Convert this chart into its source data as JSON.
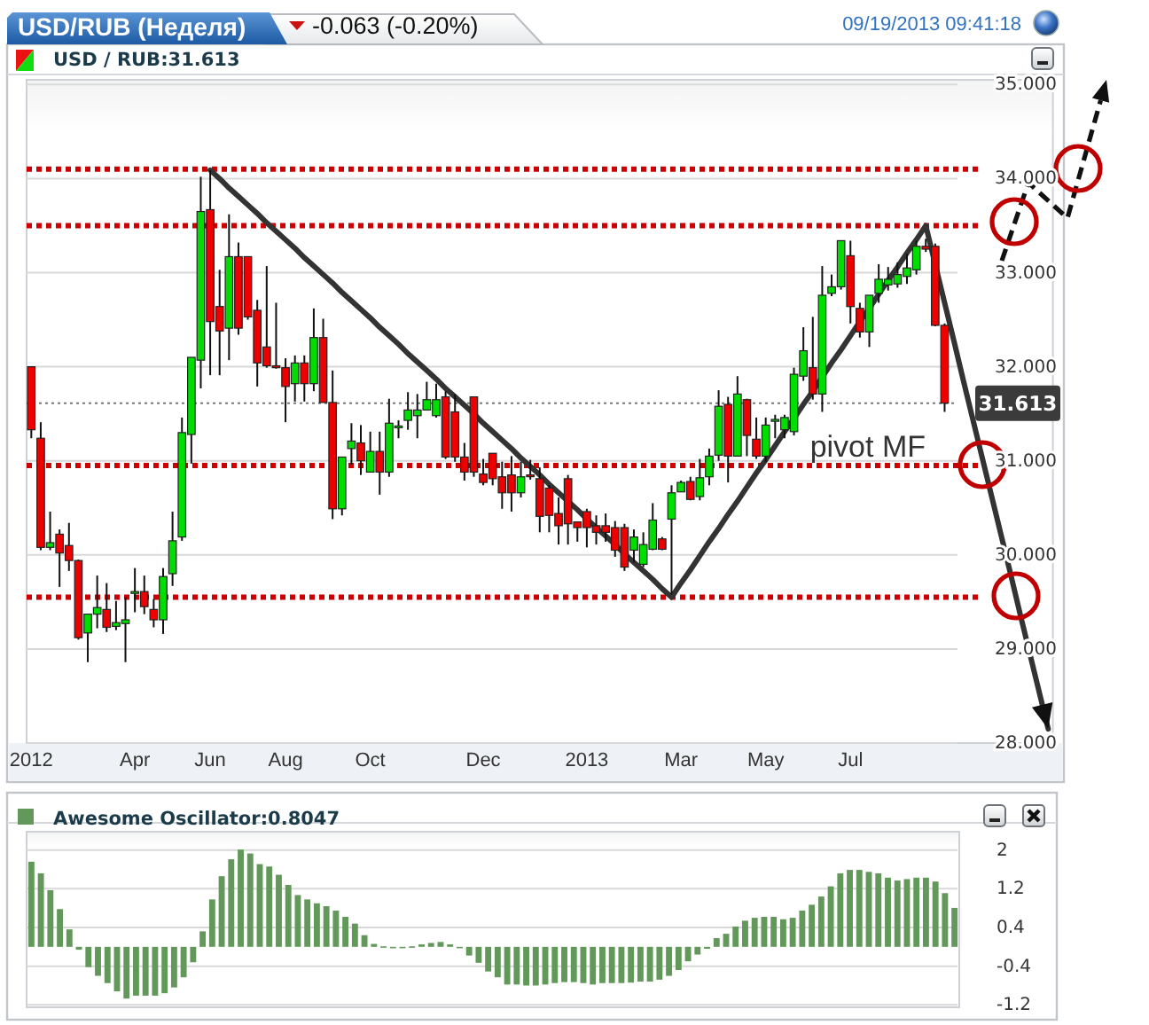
{
  "chart_data": [
    {
      "type": "candlestick",
      "title": "USD/RUB (Неделя)",
      "subtitle": "USD / RUB:31.613",
      "annotations": [
        "-0.063 (-0.20%)",
        "09/19/2013 09:41:18"
      ],
      "categories": [
        "2012",
        null,
        null,
        null,
        null,
        null,
        null,
        null,
        null,
        null,
        null,
        "Apr",
        null,
        null,
        null,
        null,
        null,
        null,
        null,
        "Jun",
        null,
        null,
        null,
        null,
        null,
        null,
        null,
        "Aug",
        null,
        null,
        null,
        null,
        null,
        null,
        null,
        null,
        "Oct",
        null,
        null,
        null,
        null,
        null,
        null,
        null,
        null,
        null,
        null,
        null,
        "Dec",
        null,
        null,
        null,
        null,
        null,
        null,
        null,
        null,
        null,
        null,
        "2013",
        null,
        null,
        null,
        null,
        null,
        null,
        null,
        null,
        null,
        "Mar",
        null,
        null,
        null,
        null,
        null,
        null,
        null,
        null,
        "May",
        null,
        null,
        null,
        null,
        null,
        null,
        null,
        null,
        "Jul",
        null,
        null,
        null,
        null,
        null,
        null,
        null,
        null,
        null,
        null,
        null,
        null,
        null,
        null,
        null,
        null,
        null,
        null,
        null,
        null,
        null
      ],
      "ohlc": [
        [
          32.0,
          32.0,
          31.24,
          31.33
        ],
        [
          31.24,
          31.41,
          30.05,
          30.08
        ],
        [
          30.08,
          30.46,
          30.05,
          30.13
        ],
        [
          30.22,
          30.27,
          29.66,
          30.02
        ],
        [
          30.1,
          30.34,
          29.83,
          29.94
        ],
        [
          29.94,
          29.95,
          29.1,
          29.12
        ],
        [
          29.17,
          29.37,
          28.86,
          29.37
        ],
        [
          29.37,
          29.78,
          29.22,
          29.44
        ],
        [
          29.42,
          29.7,
          29.18,
          29.23
        ],
        [
          29.24,
          29.51,
          29.2,
          29.28
        ],
        [
          29.27,
          29.55,
          28.86,
          29.31
        ],
        [
          29.6,
          29.86,
          29.39,
          29.61
        ],
        [
          29.61,
          29.78,
          29.37,
          29.45
        ],
        [
          29.42,
          29.53,
          29.23,
          29.31
        ],
        [
          29.31,
          29.86,
          29.16,
          29.77
        ],
        [
          29.8,
          30.46,
          29.67,
          30.15
        ],
        [
          30.19,
          31.46,
          30.15,
          31.3
        ],
        [
          31.28,
          32.1,
          30.97,
          32.1
        ],
        [
          32.07,
          34.02,
          31.77,
          33.65
        ],
        [
          33.67,
          34.09,
          31.91,
          32.48
        ],
        [
          32.64,
          33.03,
          31.91,
          32.38
        ],
        [
          32.41,
          33.62,
          32.07,
          33.17
        ],
        [
          33.17,
          33.32,
          32.34,
          32.41
        ],
        [
          33.17,
          33.17,
          32.5,
          32.53
        ],
        [
          32.6,
          32.71,
          31.79,
          32.04
        ],
        [
          32.21,
          33.07,
          31.99,
          32.01
        ],
        [
          32.01,
          32.68,
          31.98,
          31.99
        ],
        [
          31.99,
          32.09,
          31.41,
          31.79
        ],
        [
          31.82,
          32.12,
          31.63,
          32.04
        ],
        [
          32.04,
          32.12,
          31.63,
          31.82
        ],
        [
          31.82,
          32.62,
          31.74,
          32.31
        ],
        [
          32.31,
          32.51,
          31.62,
          31.62
        ],
        [
          31.62,
          31.96,
          30.38,
          30.49
        ],
        [
          30.49,
          31.04,
          30.42,
          31.04
        ],
        [
          31.13,
          31.4,
          30.96,
          31.21
        ],
        [
          31.19,
          31.38,
          30.85,
          31.0
        ],
        [
          30.88,
          31.31,
          30.88,
          31.1
        ],
        [
          31.1,
          31.31,
          30.64,
          30.88
        ],
        [
          30.88,
          31.66,
          30.83,
          31.4
        ],
        [
          31.36,
          31.43,
          31.24,
          31.37
        ],
        [
          31.43,
          31.73,
          31.33,
          31.54
        ],
        [
          31.48,
          31.71,
          31.24,
          31.54
        ],
        [
          31.54,
          31.84,
          31.54,
          31.65
        ],
        [
          31.48,
          31.82,
          31.46,
          31.65
        ],
        [
          31.68,
          31.74,
          31.02,
          31.04
        ],
        [
          31.52,
          31.71,
          30.99,
          31.04
        ],
        [
          31.04,
          31.19,
          30.79,
          30.88
        ],
        [
          31.68,
          31.68,
          30.83,
          30.88
        ],
        [
          30.86,
          31.02,
          30.74,
          30.77
        ],
        [
          31.08,
          31.08,
          30.74,
          30.81
        ],
        [
          30.83,
          30.99,
          30.49,
          30.66
        ],
        [
          30.85,
          31.05,
          30.46,
          30.66
        ],
        [
          30.66,
          30.99,
          30.61,
          30.83
        ],
        [
          30.85,
          31.01,
          30.8,
          30.84
        ],
        [
          30.81,
          30.93,
          30.24,
          30.41
        ],
        [
          30.71,
          30.74,
          30.24,
          30.42
        ],
        [
          30.44,
          30.61,
          30.11,
          30.31
        ],
        [
          30.81,
          30.85,
          30.11,
          30.33
        ],
        [
          30.35,
          30.35,
          30.14,
          30.29
        ],
        [
          30.46,
          30.49,
          30.08,
          30.29
        ],
        [
          30.31,
          30.42,
          30.11,
          30.24
        ],
        [
          30.31,
          30.44,
          30.14,
          30.24
        ],
        [
          30.29,
          30.36,
          29.98,
          30.05
        ],
        [
          30.29,
          30.33,
          29.83,
          29.87
        ],
        [
          30.05,
          30.27,
          29.92,
          30.19
        ],
        [
          29.9,
          30.24,
          29.87,
          30.11
        ],
        [
          30.06,
          30.55,
          30.05,
          30.37
        ],
        [
          30.17,
          30.19,
          30.05,
          30.06
        ],
        [
          30.38,
          30.74,
          29.58,
          30.66
        ],
        [
          30.67,
          30.79,
          30.67,
          30.77
        ],
        [
          30.78,
          30.83,
          30.58,
          30.59
        ],
        [
          30.62,
          31.02,
          30.58,
          30.82
        ],
        [
          30.83,
          31.13,
          30.74,
          31.05
        ],
        [
          31.06,
          31.75,
          31.0,
          31.58
        ],
        [
          31.6,
          31.68,
          30.77,
          31.05
        ],
        [
          31.05,
          31.9,
          31.05,
          31.71
        ],
        [
          31.65,
          31.66,
          31.05,
          31.27
        ],
        [
          31.23,
          31.46,
          31.02,
          31.05
        ],
        [
          31.05,
          31.46,
          30.99,
          31.38
        ],
        [
          31.42,
          31.49,
          31.24,
          31.44
        ],
        [
          31.33,
          31.49,
          31.24,
          31.46
        ],
        [
          31.31,
          31.99,
          31.27,
          31.92
        ],
        [
          31.9,
          32.42,
          31.85,
          32.17
        ],
        [
          31.99,
          32.53,
          31.65,
          31.71
        ],
        [
          31.71,
          33.07,
          31.52,
          32.76
        ],
        [
          32.78,
          32.98,
          32.75,
          32.85
        ],
        [
          32.85,
          33.34,
          32.82,
          33.34
        ],
        [
          33.18,
          33.34,
          32.46,
          32.64
        ],
        [
          32.62,
          32.68,
          32.31,
          32.37
        ],
        [
          32.37,
          32.76,
          32.21,
          32.76
        ],
        [
          32.78,
          33.09,
          32.68,
          32.93
        ],
        [
          32.87,
          33.06,
          32.81,
          32.93
        ],
        [
          32.88,
          33.11,
          32.84,
          32.98
        ],
        [
          32.96,
          33.2,
          32.88,
          33.05
        ],
        [
          33.03,
          33.34,
          32.98,
          33.28
        ],
        [
          33.28,
          33.36,
          33.22,
          33.25
        ],
        [
          33.28,
          33.31,
          32.43,
          32.44
        ],
        [
          32.44,
          32.46,
          31.52,
          31.613
        ],
        null,
        null,
        null,
        null,
        null,
        null,
        null,
        null,
        null,
        null,
        null
      ],
      "colors": [
        "#ee0000",
        "#ee0000",
        "#00dd00",
        "#ee0000",
        "#ee0000",
        "#ee0000",
        "#00dd00",
        "#00dd00",
        "#ee0000",
        "#00dd00",
        "#00dd00",
        "#00dd00",
        "#ee0000",
        "#ee0000",
        "#00dd00",
        "#00dd00",
        "#00dd00",
        "#00dd00",
        "#00dd00",
        "#ee0000",
        "#ee0000",
        "#00dd00",
        "#ee0000",
        "#ee0000",
        "#ee0000",
        "#ee0000",
        "#ee0000",
        "#ee0000",
        "#00dd00",
        "#ee0000",
        "#00dd00",
        "#ee0000",
        "#ee0000",
        "#00dd00",
        "#00dd00",
        "#ee0000",
        "#00dd00",
        "#ee0000",
        "#00dd00",
        "#00dd00",
        "#00dd00",
        "#00dd00",
        "#00dd00",
        "#00dd00",
        "#ee0000",
        "#ee0000",
        "#ee0000",
        "#ee0000",
        "#ee0000",
        "#ee0000",
        "#ee0000",
        "#ee0000",
        "#00dd00",
        "#ee0000",
        "#ee0000",
        "#ee0000",
        "#ee0000",
        "#ee0000",
        "#ee0000",
        "#ee0000",
        "#ee0000",
        "#ee0000",
        "#ee0000",
        "#ee0000",
        "#00dd00",
        "#00dd00",
        "#00dd00",
        "#ee0000",
        "#00dd00",
        "#00dd00",
        "#ee0000",
        "#00dd00",
        "#00dd00",
        "#00dd00",
        "#ee0000",
        "#00dd00",
        "#ee0000",
        "#ee0000",
        "#00dd00",
        "#00dd00",
        "#00dd00",
        "#00dd00",
        "#00dd00",
        "#ee0000",
        "#00dd00",
        "#00dd00",
        "#00dd00",
        "#ee0000",
        "#ee0000",
        "#00dd00",
        "#00dd00",
        "#00dd00",
        "#00dd00",
        "#00dd00",
        "#00dd00",
        "#ee0000",
        "#ee0000",
        "#ee0000",
        null,
        null,
        null,
        null,
        null,
        null,
        null,
        null,
        null,
        null,
        null
      ],
      "series": [
        {
          "type": "line",
          "color": "#333333",
          "values": [
            null,
            null,
            null,
            null,
            null,
            null,
            null,
            null,
            null,
            null,
            null,
            null,
            null,
            null,
            null,
            null,
            null,
            null,
            null,
            34.09,
            34.0,
            33.9,
            33.81,
            33.72,
            33.63,
            33.53,
            33.44,
            33.35,
            33.26,
            33.16,
            33.07,
            32.98,
            32.89,
            32.79,
            32.7,
            32.61,
            32.52,
            32.42,
            32.33,
            32.24,
            32.14,
            32.05,
            31.96,
            31.87,
            31.77,
            31.68,
            31.59,
            31.5,
            31.4,
            31.31,
            31.22,
            31.13,
            31.03,
            30.94,
            30.85,
            30.75,
            30.66,
            30.57,
            30.48,
            30.38,
            30.29,
            30.2,
            30.11,
            30.01,
            29.92,
            29.83,
            29.74,
            29.64,
            29.55,
            29.7,
            29.84,
            29.99,
            30.14,
            30.28,
            30.43,
            30.57,
            30.72,
            30.87,
            31.01,
            31.16,
            31.31,
            31.45,
            31.6,
            31.74,
            31.89,
            32.04,
            32.18,
            32.33,
            32.48,
            32.62,
            32.77,
            32.92,
            33.06,
            33.21,
            33.35,
            33.5,
            33.09,
            32.68,
            32.27,
            31.85,
            31.44,
            31.03,
            30.62,
            30.21,
            29.8,
            29.38,
            28.97,
            28.56,
            28.15
          ]
        }
      ],
      "ylim": [
        28,
        35.05
      ],
      "yticks": [
        {
          "value": 28,
          "label": "28.000"
        },
        {
          "value": 29,
          "label": "29.000"
        },
        {
          "value": 30,
          "label": "30.000"
        },
        {
          "value": 31,
          "label": "31.000"
        },
        {
          "value": 32,
          "label": "32.000"
        },
        {
          "value": 33,
          "label": "33.000"
        },
        {
          "value": 34,
          "label": "34.000"
        },
        {
          "value": 35,
          "label": "35.000"
        }
      ],
      "grid": "y",
      "ref_lines": [
        {
          "axis": "y",
          "value": 34.1,
          "color": "#cc0000",
          "line_style": "dotted"
        },
        {
          "axis": "y",
          "value": 33.5,
          "color": "#cc0000",
          "line_style": "dotted"
        },
        {
          "axis": "y",
          "value": 30.95,
          "label": "pivot MF",
          "color": "#cc0000",
          "line_style": "dotted"
        },
        {
          "axis": "y",
          "value": 29.55,
          "color": "#cc0000",
          "line_style": "dotted"
        },
        {
          "axis": "y",
          "value": 31.613,
          "label": "31.613",
          "color": "#777777",
          "line_style": "dotted"
        }
      ]
    },
    {
      "type": "bar",
      "categories": [
        null,
        null,
        null,
        null,
        null,
        null,
        null,
        null,
        null,
        null,
        null,
        null,
        null,
        null,
        null,
        null,
        null,
        null,
        null,
        null,
        null,
        null,
        null,
        null,
        null,
        null,
        null,
        null,
        null,
        null,
        null,
        null,
        null,
        null,
        null,
        null,
        null,
        null,
        null,
        null,
        null,
        null,
        null,
        null,
        null,
        null,
        null,
        null,
        null,
        null,
        null,
        null,
        null,
        null,
        null,
        null,
        null,
        null,
        null,
        null,
        null,
        null,
        null,
        null,
        null,
        null,
        null,
        null,
        null,
        null,
        null,
        null,
        null,
        null,
        null,
        null,
        null,
        null,
        null,
        null,
        null,
        null,
        null,
        null,
        null,
        null,
        null,
        null,
        null,
        null,
        null,
        null,
        null,
        null,
        null,
        null,
        null,
        null
      ],
      "series": [
        {
          "name": "Awesome Oscillator:0.8047",
          "color": "#62995a",
          "values": [
            1.76,
            1.52,
            1.17,
            0.78,
            0.36,
            -0.06,
            -0.42,
            -0.6,
            -0.75,
            -0.92,
            -1.07,
            -1.01,
            -1.01,
            -1.01,
            -0.96,
            -0.84,
            -0.63,
            -0.32,
            0.32,
            0.98,
            1.46,
            1.81,
            2.01,
            1.93,
            1.71,
            1.66,
            1.49,
            1.28,
            1.07,
            0.98,
            0.9,
            0.84,
            0.75,
            0.62,
            0.48,
            0.24,
            0.06,
            0.01,
            -0.01,
            -0.01,
            0.01,
            0.05,
            0.08,
            0.1,
            0.05,
            -0.02,
            -0.18,
            -0.33,
            -0.51,
            -0.63,
            -0.78,
            -0.78,
            -0.8,
            -0.8,
            -0.78,
            -0.75,
            -0.73,
            -0.73,
            -0.75,
            -0.78,
            -0.75,
            -0.75,
            -0.75,
            -0.74,
            -0.72,
            -0.72,
            -0.68,
            -0.6,
            -0.48,
            -0.3,
            -0.16,
            -0.04,
            0.18,
            0.27,
            0.42,
            0.54,
            0.6,
            0.62,
            0.62,
            0.57,
            0.6,
            0.75,
            0.87,
            1.04,
            1.25,
            1.52,
            1.59,
            1.59,
            1.55,
            1.52,
            1.43,
            1.37,
            1.4,
            1.43,
            1.43,
            1.35,
            1.11,
            0.8047
          ]
        }
      ],
      "ylim": [
        -1.25,
        2.38
      ],
      "yticks": [
        -1.2,
        -0.4,
        0.4,
        1.2,
        2
      ],
      "grid": "y",
      "legend": "top left",
      "tick_labels": "y"
    }
  ]
}
